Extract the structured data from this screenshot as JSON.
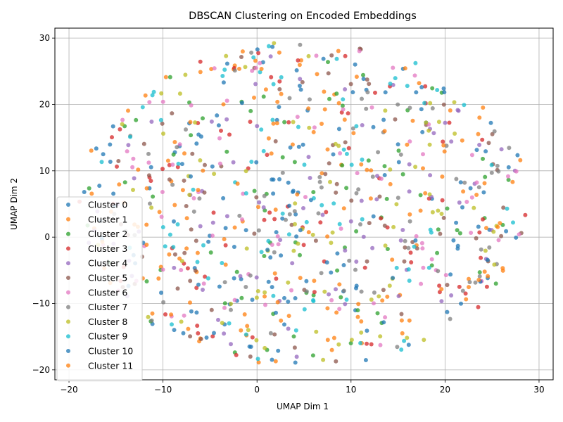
{
  "chart_data": {
    "type": "scatter",
    "title": "DBSCAN Clustering on Encoded Embeddings",
    "xlabel": "UMAP Dim 1",
    "ylabel": "UMAP Dim 2",
    "xlim": [
      -21.5,
      31.5
    ],
    "ylim": [
      -21.5,
      31.5
    ],
    "xticks": [
      -20,
      -10,
      0,
      10,
      20,
      30
    ],
    "yticks": [
      -20,
      -10,
      0,
      10,
      20,
      30
    ],
    "xtick_labels": [
      "−20",
      "−10",
      "0",
      "10",
      "20",
      "30"
    ],
    "ytick_labels": [
      "−20",
      "−10",
      "0",
      "10",
      "20",
      "30"
    ],
    "grid": true,
    "legend_position": "lower-left",
    "point_cloud": {
      "center": [
        5,
        5
      ],
      "radius_x": 24,
      "radius_y": 24.5,
      "points_per_series": 80
    },
    "series": [
      {
        "name": "Cluster 0",
        "color": "#1f77b4"
      },
      {
        "name": "Cluster 1",
        "color": "#ff7f0e"
      },
      {
        "name": "Cluster 2",
        "color": "#2ca02c"
      },
      {
        "name": "Cluster 3",
        "color": "#d62728"
      },
      {
        "name": "Cluster 4",
        "color": "#9467bd"
      },
      {
        "name": "Cluster 5",
        "color": "#8c564b"
      },
      {
        "name": "Cluster 6",
        "color": "#e377c2"
      },
      {
        "name": "Cluster 7",
        "color": "#7f7f7f"
      },
      {
        "name": "Cluster 8",
        "color": "#bcbd22"
      },
      {
        "name": "Cluster 9",
        "color": "#17becf"
      },
      {
        "name": "Cluster 10",
        "color": "#1f77b4"
      },
      {
        "name": "Cluster 11",
        "color": "#ff7f0e"
      }
    ]
  }
}
